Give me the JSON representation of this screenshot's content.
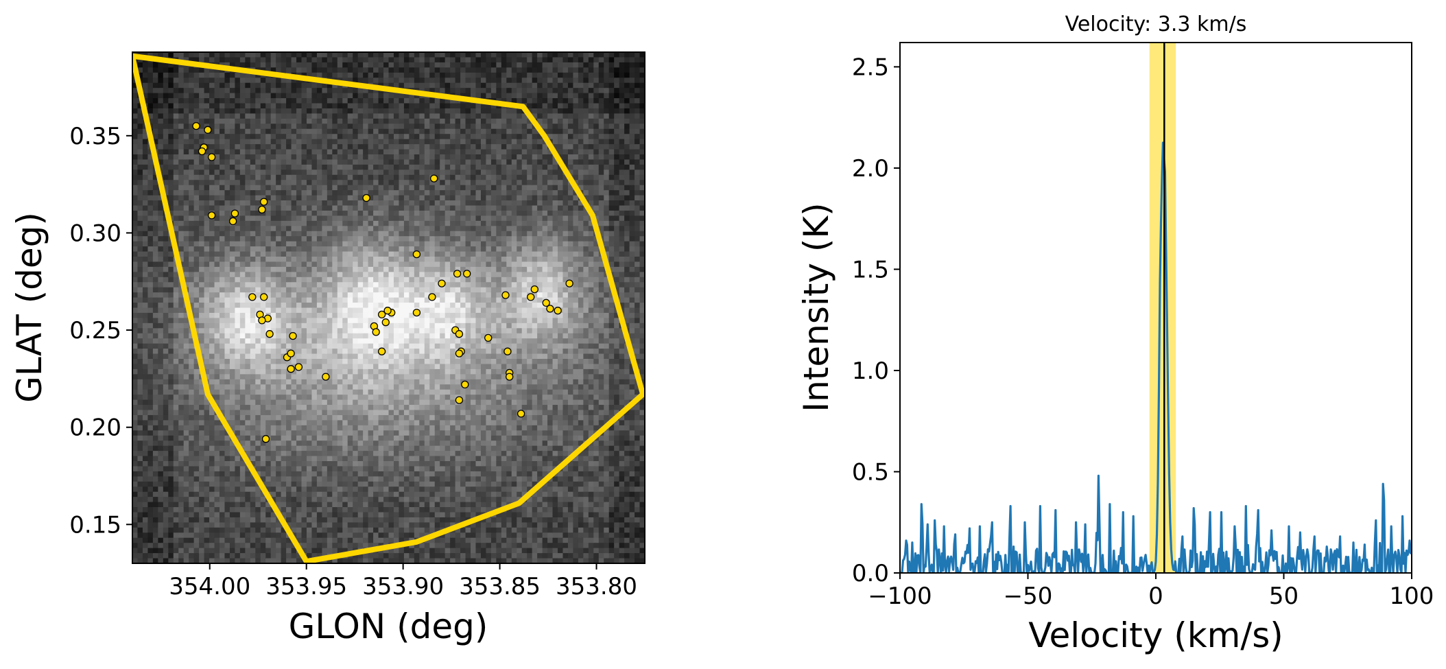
{
  "chart_data": [
    {
      "type": "scatter",
      "panel": "sky-map",
      "xlabel": "GLON (deg)",
      "ylabel": "GLAT (deg)",
      "xlim": [
        354.04,
        353.775
      ],
      "ylim": [
        0.13,
        0.393
      ],
      "x_ticks": [
        354.0,
        353.95,
        353.9,
        353.85,
        353.8
      ],
      "x_tick_labels": [
        "354.00",
        "353.95",
        "353.90",
        "353.85",
        "353.80"
      ],
      "y_ticks": [
        0.15,
        0.2,
        0.25,
        0.3,
        0.35
      ],
      "y_tick_labels": [
        "0.15",
        "0.20",
        "0.25",
        "0.30",
        "0.35"
      ],
      "background": "grayscale intensity image, bright horizontal filament near GLAT 0.25",
      "polygon": {
        "color": "#FFD700",
        "vertices": [
          [
            354.04,
            0.391
          ],
          [
            353.838,
            0.365
          ],
          [
            353.827,
            0.35
          ],
          [
            353.802,
            0.309
          ],
          [
            353.776,
            0.217
          ],
          [
            353.84,
            0.161
          ],
          [
            353.893,
            0.141
          ],
          [
            353.95,
            0.131
          ],
          [
            354.001,
            0.217
          ],
          [
            354.04,
            0.391
          ]
        ]
      },
      "sources": {
        "marker_color": "#FFD700",
        "edge_color": "#000000",
        "points": [
          [
            354.007,
            0.355
          ],
          [
            354.001,
            0.353
          ],
          [
            354.003,
            0.344
          ],
          [
            353.999,
            0.339
          ],
          [
            354.004,
            0.342
          ],
          [
            353.999,
            0.309
          ],
          [
            353.988,
            0.306
          ],
          [
            353.987,
            0.31
          ],
          [
            353.972,
            0.316
          ],
          [
            353.973,
            0.312
          ],
          [
            353.978,
            0.267
          ],
          [
            353.972,
            0.267
          ],
          [
            353.974,
            0.258
          ],
          [
            353.97,
            0.256
          ],
          [
            353.973,
            0.255
          ],
          [
            353.969,
            0.248
          ],
          [
            353.957,
            0.247
          ],
          [
            353.96,
            0.236
          ],
          [
            353.958,
            0.238
          ],
          [
            353.954,
            0.231
          ],
          [
            353.958,
            0.23
          ],
          [
            353.971,
            0.194
          ],
          [
            353.94,
            0.226
          ],
          [
            353.919,
            0.318
          ],
          [
            353.915,
            0.252
          ],
          [
            353.914,
            0.249
          ],
          [
            353.911,
            0.258
          ],
          [
            353.909,
            0.254
          ],
          [
            353.906,
            0.259
          ],
          [
            353.908,
            0.26
          ],
          [
            353.911,
            0.239
          ],
          [
            353.893,
            0.259
          ],
          [
            353.893,
            0.289
          ],
          [
            353.884,
            0.328
          ],
          [
            353.885,
            0.267
          ],
          [
            353.88,
            0.274
          ],
          [
            353.872,
            0.279
          ],
          [
            353.867,
            0.279
          ],
          [
            353.873,
            0.25
          ],
          [
            353.871,
            0.248
          ],
          [
            353.87,
            0.239
          ],
          [
            353.871,
            0.238
          ],
          [
            353.868,
            0.222
          ],
          [
            353.871,
            0.214
          ],
          [
            353.856,
            0.246
          ],
          [
            353.847,
            0.268
          ],
          [
            353.846,
            0.239
          ],
          [
            353.845,
            0.228
          ],
          [
            353.845,
            0.226
          ],
          [
            353.839,
            0.207
          ],
          [
            353.834,
            0.267
          ],
          [
            353.832,
            0.271
          ],
          [
            353.826,
            0.264
          ],
          [
            353.824,
            0.261
          ],
          [
            353.82,
            0.26
          ],
          [
            353.814,
            0.274
          ]
        ]
      }
    },
    {
      "type": "line",
      "panel": "spectrum",
      "title": "Velocity: 3.3 km/s",
      "xlabel": "Velocity (km/s)",
      "ylabel": "Intensity (K)",
      "xlim": [
        -100,
        100
      ],
      "ylim": [
        0,
        2.62
      ],
      "x_ticks": [
        -100,
        -50,
        0,
        50,
        100
      ],
      "x_tick_labels": [
        "−100",
        "−50",
        "0",
        "50",
        "100"
      ],
      "y_ticks": [
        0.0,
        0.5,
        1.0,
        1.5,
        2.0,
        2.5
      ],
      "y_tick_labels": [
        "0.0",
        "0.5",
        "1.0",
        "1.5",
        "2.0",
        "2.5"
      ],
      "highlight_band": {
        "x_range": [
          -2.5,
          7.8
        ],
        "color": "#FFE873"
      },
      "marker_line": {
        "x": 3.3,
        "color": "#000000"
      },
      "series": [
        {
          "color": "#1f77b4",
          "peak": {
            "x": 3.3,
            "y": 2.09
          },
          "noise_spikes": [
            [
              -97.6,
              0.16
            ],
            [
              -95.3,
              0.15
            ],
            [
              -91.4,
              0.34
            ],
            [
              -89.2,
              0.24
            ],
            [
              -86.3,
              0.26
            ],
            [
              -82.6,
              0.23
            ],
            [
              -78.5,
              0.19
            ],
            [
              -72.9,
              0.22
            ],
            [
              -68.6,
              0.23
            ],
            [
              -64.1,
              0.25
            ],
            [
              -56.7,
              0.33
            ],
            [
              -51.2,
              0.25
            ],
            [
              -45.0,
              0.33
            ],
            [
              -39.1,
              0.31
            ],
            [
              -31.1,
              0.25
            ],
            [
              -27.7,
              0.24
            ],
            [
              -22.4,
              0.48
            ],
            [
              -18.1,
              0.34
            ],
            [
              -12.7,
              0.3
            ],
            [
              -8.6,
              0.28
            ],
            [
              10.4,
              0.18
            ],
            [
              15.0,
              0.32
            ],
            [
              21.3,
              0.3
            ],
            [
              25.8,
              0.3
            ],
            [
              30.7,
              0.23
            ],
            [
              35.2,
              0.33
            ],
            [
              40.2,
              0.31
            ],
            [
              45.4,
              0.21
            ],
            [
              52.0,
              0.23
            ],
            [
              56.3,
              0.2
            ],
            [
              62.1,
              0.18
            ],
            [
              66.7,
              0.13
            ],
            [
              72.2,
              0.18
            ],
            [
              77.3,
              0.15
            ],
            [
              81.6,
              0.14
            ],
            [
              86.1,
              0.26
            ],
            [
              88.7,
              0.44
            ],
            [
              92.0,
              0.23
            ],
            [
              96.4,
              0.28
            ],
            [
              99.2,
              0.16
            ]
          ]
        }
      ]
    }
  ]
}
